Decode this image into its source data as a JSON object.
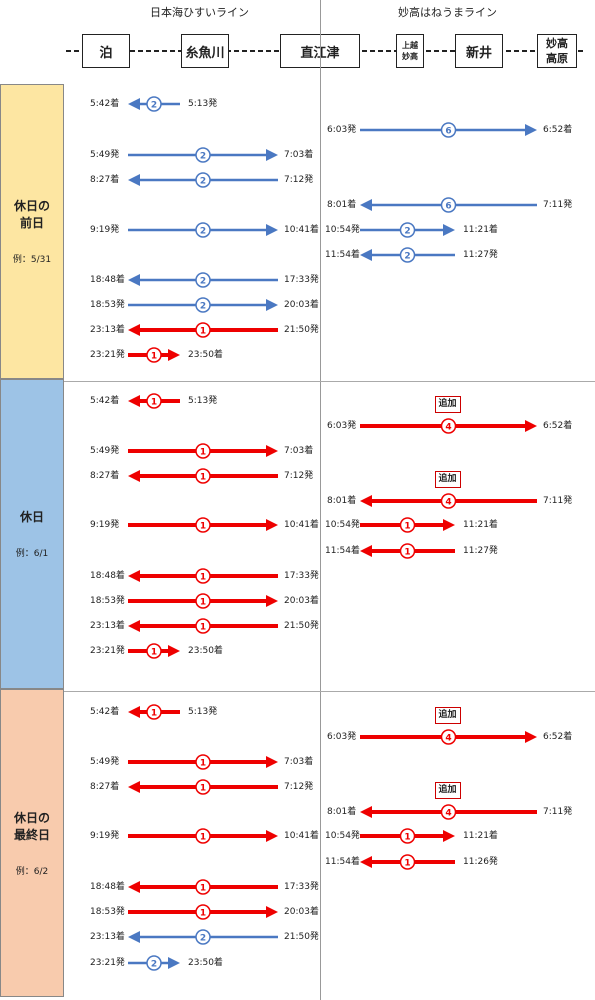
{
  "header": {
    "line_left": "日本海ひすいライン",
    "line_right": "妙高はねうまライン",
    "stations": [
      {
        "name": "泊"
      },
      {
        "name": "糸魚川"
      },
      {
        "name": "直江津"
      },
      {
        "name": "上越妙高",
        "lines": [
          "上越",
          "妙高"
        ]
      },
      {
        "name": "新井"
      },
      {
        "name": "妙高高原",
        "lines": [
          "妙高",
          "高原"
        ]
      }
    ]
  },
  "colors": {
    "red": "#ee0000",
    "blue": "#4a78c2"
  },
  "sections": [
    {
      "title_lines": [
        "休日の",
        "前日"
      ],
      "example": "例：5/31",
      "color": "#fde6a2",
      "trains": [
        {
          "line": "left",
          "dir": "left",
          "color": "blue",
          "cars": "2",
          "arr": "5:42着",
          "dep": "5:13発",
          "short": true
        },
        {
          "line": "left",
          "dir": "right",
          "color": "blue",
          "cars": "2",
          "dep": "5:49発",
          "arr": "7:03着"
        },
        {
          "line": "left",
          "dir": "left",
          "color": "blue",
          "cars": "2",
          "arr": "8:27着",
          "dep": "7:12発"
        },
        {
          "line": "left",
          "dir": "right",
          "color": "blue",
          "cars": "2",
          "dep": "9:19発",
          "arr": "10:41着"
        },
        {
          "line": "left",
          "dir": "left",
          "color": "blue",
          "cars": "2",
          "arr": "18:48着",
          "dep": "17:33発"
        },
        {
          "line": "left",
          "dir": "right",
          "color": "blue",
          "cars": "2",
          "dep": "18:53発",
          "arr": "20:03着"
        },
        {
          "line": "left",
          "dir": "left",
          "color": "red",
          "cars": "1",
          "arr": "23:13着",
          "dep": "21:50発"
        },
        {
          "line": "left",
          "dir": "right",
          "color": "red",
          "cars": "1",
          "dep": "23:21発",
          "arr": "23:50着",
          "short": true
        },
        {
          "line": "right",
          "dir": "right",
          "color": "blue",
          "cars": "6",
          "dep": "6:03発",
          "arr": "6:52着"
        },
        {
          "line": "right",
          "dir": "left",
          "color": "blue",
          "cars": "6",
          "arr": "8:01着",
          "dep": "7:11発"
        },
        {
          "line": "right",
          "dir": "right",
          "color": "blue",
          "cars": "2",
          "dep": "10:54発",
          "arr": "11:21着",
          "short": true
        },
        {
          "line": "right",
          "dir": "left",
          "color": "blue",
          "cars": "2",
          "arr": "11:54着",
          "dep": "11:27発",
          "short": true
        }
      ]
    },
    {
      "title_lines": [
        "休日"
      ],
      "example": "例：6/1",
      "color": "#9dc3e6",
      "trains": [
        {
          "line": "left",
          "dir": "left",
          "color": "red",
          "cars": "1",
          "arr": "5:42着",
          "dep": "5:13発",
          "short": true
        },
        {
          "line": "left",
          "dir": "right",
          "color": "red",
          "cars": "1",
          "dep": "5:49発",
          "arr": "7:03着"
        },
        {
          "line": "left",
          "dir": "left",
          "color": "red",
          "cars": "1",
          "arr": "8:27着",
          "dep": "7:12発"
        },
        {
          "line": "left",
          "dir": "right",
          "color": "red",
          "cars": "1",
          "dep": "9:19発",
          "arr": "10:41着"
        },
        {
          "line": "left",
          "dir": "left",
          "color": "red",
          "cars": "1",
          "arr": "18:48着",
          "dep": "17:33発"
        },
        {
          "line": "left",
          "dir": "right",
          "color": "red",
          "cars": "1",
          "dep": "18:53発",
          "arr": "20:03着"
        },
        {
          "line": "left",
          "dir": "left",
          "color": "red",
          "cars": "1",
          "arr": "23:13着",
          "dep": "21:50発"
        },
        {
          "line": "left",
          "dir": "right",
          "color": "red",
          "cars": "1",
          "dep": "23:21発",
          "arr": "23:50着",
          "short": true
        },
        {
          "line": "right",
          "dir": "right",
          "color": "red",
          "cars": "4",
          "dep": "6:03発",
          "arr": "6:52着",
          "badge": "追加"
        },
        {
          "line": "right",
          "dir": "left",
          "color": "red",
          "cars": "4",
          "arr": "8:01着",
          "dep": "7:11発",
          "badge": "追加"
        },
        {
          "line": "right",
          "dir": "right",
          "color": "red",
          "cars": "1",
          "dep": "10:54発",
          "arr": "11:21着",
          "short": true
        },
        {
          "line": "right",
          "dir": "left",
          "color": "red",
          "cars": "1",
          "arr": "11:54着",
          "dep": "11:27発",
          "short": true
        }
      ]
    },
    {
      "title_lines": [
        "休日の",
        "最終日"
      ],
      "example": "例：6/2",
      "color": "#f8cbad",
      "trains": [
        {
          "line": "left",
          "dir": "left",
          "color": "red",
          "cars": "1",
          "arr": "5:42着",
          "dep": "5:13発",
          "short": true
        },
        {
          "line": "left",
          "dir": "right",
          "color": "red",
          "cars": "1",
          "dep": "5:49発",
          "arr": "7:03着"
        },
        {
          "line": "left",
          "dir": "left",
          "color": "red",
          "cars": "1",
          "arr": "8:27着",
          "dep": "7:12発"
        },
        {
          "line": "left",
          "dir": "right",
          "color": "red",
          "cars": "1",
          "dep": "9:19発",
          "arr": "10:41着"
        },
        {
          "line": "left",
          "dir": "left",
          "color": "red",
          "cars": "1",
          "arr": "18:48着",
          "dep": "17:33発"
        },
        {
          "line": "left",
          "dir": "right",
          "color": "red",
          "cars": "1",
          "dep": "18:53発",
          "arr": "20:03着"
        },
        {
          "line": "left",
          "dir": "left",
          "color": "blue",
          "cars": "2",
          "arr": "23:13着",
          "dep": "21:50発"
        },
        {
          "line": "left",
          "dir": "right",
          "color": "blue",
          "cars": "2",
          "dep": "23:21発",
          "arr": "23:50着",
          "short": true
        },
        {
          "line": "right",
          "dir": "right",
          "color": "red",
          "cars": "4",
          "dep": "6:03発",
          "arr": "6:52着",
          "badge": "追加"
        },
        {
          "line": "right",
          "dir": "left",
          "color": "red",
          "cars": "4",
          "arr": "8:01着",
          "dep": "7:11発",
          "badge": "追加"
        },
        {
          "line": "right",
          "dir": "right",
          "color": "red",
          "cars": "1",
          "dep": "10:54発",
          "arr": "11:21着",
          "short": true
        },
        {
          "line": "right",
          "dir": "left",
          "color": "red",
          "cars": "1",
          "arr": "11:54着",
          "dep": "11:26発",
          "short": true
        }
      ]
    }
  ]
}
